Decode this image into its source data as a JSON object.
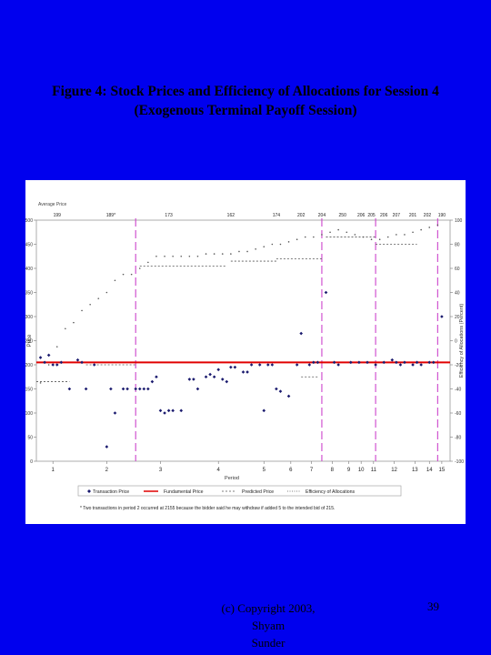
{
  "slide": {
    "title_line1": "Figure 4: Stock Prices and Efficiency of Allocations for Session 4",
    "title_line2": "(Exogenous Terminal Payoff Session)",
    "copyright_line1": "(c) Copyright 2003, Shyam",
    "copyright_line2": "Sunder",
    "page_number": "39",
    "background_color": "#0000ee"
  },
  "chart_data": {
    "type": "scatter",
    "xlabel": "Period",
    "ylabel": "Price",
    "y2label": "Efficiency of Allocations (Percent)",
    "top_axis_title": "Average Price",
    "ylim": [
      0,
      500
    ],
    "y2lim": [
      -100,
      100
    ],
    "y_ticks": [
      "0",
      "50",
      "100",
      "150",
      "200",
      "250",
      "300",
      "350",
      "400",
      "450",
      "500"
    ],
    "y2_ticks": [
      "-100",
      "-80",
      "-60",
      "-40",
      "-20",
      "0",
      "20",
      "40",
      "60",
      "80",
      "100"
    ],
    "xlim": [
      0,
      100
    ],
    "periods": [
      {
        "label": "1",
        "x": 4
      },
      {
        "label": "2",
        "x": 17
      },
      {
        "label": "3",
        "x": 30
      },
      {
        "label": "4",
        "x": 44
      },
      {
        "label": "5",
        "x": 55
      },
      {
        "label": "6",
        "x": 61.5
      },
      {
        "label": "7",
        "x": 66.5
      },
      {
        "label": "8",
        "x": 71.5
      },
      {
        "label": "9",
        "x": 75.5
      },
      {
        "label": "10",
        "x": 78.5
      },
      {
        "label": "11",
        "x": 81.5
      },
      {
        "label": "12",
        "x": 86.5
      },
      {
        "label": "13",
        "x": 91.5
      },
      {
        "label": "14",
        "x": 95
      },
      {
        "label": "15",
        "x": 98
      }
    ],
    "average_prices": [
      {
        "label": "199",
        "x": 5
      },
      {
        "label": "189*",
        "x": 18
      },
      {
        "label": "173",
        "x": 32
      },
      {
        "label": "162",
        "x": 47
      },
      {
        "label": "174",
        "x": 58
      },
      {
        "label": "202",
        "x": 64
      },
      {
        "label": "204",
        "x": 69
      },
      {
        "label": "250",
        "x": 74
      },
      {
        "label": "206",
        "x": 78.5
      },
      {
        "label": "205",
        "x": 81
      },
      {
        "label": "206",
        "x": 84
      },
      {
        "label": "207",
        "x": 87
      },
      {
        "label": "201",
        "x": 91
      },
      {
        "label": "202",
        "x": 94.5
      },
      {
        "label": "190",
        "x": 98
      }
    ],
    "vertical_dividers_x": [
      24,
      69,
      82,
      97
    ],
    "fundamental_price": 205,
    "series": [
      {
        "name": "Transaction Price",
        "points": [
          [
            1,
            215
          ],
          [
            2,
            205
          ],
          [
            3,
            220
          ],
          [
            4,
            200
          ],
          [
            5,
            200
          ],
          [
            6,
            205
          ],
          [
            8,
            150
          ],
          [
            10,
            210
          ],
          [
            11,
            205
          ],
          [
            12,
            150
          ],
          [
            14,
            200
          ],
          [
            17,
            30
          ],
          [
            18,
            150
          ],
          [
            19,
            100
          ],
          [
            21,
            150
          ],
          [
            22,
            150
          ],
          [
            24,
            150
          ],
          [
            25,
            150
          ],
          [
            26,
            150
          ],
          [
            27,
            150
          ],
          [
            28,
            165
          ],
          [
            29,
            175
          ],
          [
            30,
            105
          ],
          [
            31,
            100
          ],
          [
            32,
            105
          ],
          [
            33,
            105
          ],
          [
            35,
            105
          ],
          [
            37,
            170
          ],
          [
            38,
            170
          ],
          [
            39,
            150
          ],
          [
            41,
            175
          ],
          [
            42,
            180
          ],
          [
            43,
            175
          ],
          [
            44,
            190
          ],
          [
            45,
            170
          ],
          [
            46,
            165
          ],
          [
            47,
            195
          ],
          [
            48,
            195
          ],
          [
            50,
            185
          ],
          [
            51,
            185
          ],
          [
            52,
            200
          ],
          [
            54,
            200
          ],
          [
            55,
            105
          ],
          [
            56,
            200
          ],
          [
            57,
            200
          ],
          [
            58,
            150
          ],
          [
            59,
            145
          ],
          [
            61,
            135
          ],
          [
            63,
            200
          ],
          [
            64,
            265
          ],
          [
            66,
            200
          ],
          [
            67,
            205
          ],
          [
            68,
            205
          ],
          [
            70,
            350
          ],
          [
            72,
            205
          ],
          [
            73,
            200
          ],
          [
            76,
            205
          ],
          [
            78,
            205
          ],
          [
            80,
            205
          ],
          [
            82,
            200
          ],
          [
            84,
            205
          ],
          [
            86,
            210
          ],
          [
            87,
            205
          ],
          [
            88,
            200
          ],
          [
            89,
            205
          ],
          [
            91,
            200
          ],
          [
            92,
            205
          ],
          [
            93,
            200
          ],
          [
            95,
            205
          ],
          [
            96,
            205
          ],
          [
            98,
            300
          ]
        ]
      },
      {
        "name": "Fundamental Price",
        "value": 205
      },
      {
        "name": "Predicted Price",
        "segments": [
          {
            "x0": 0,
            "x1": 8,
            "y": 165
          },
          {
            "x0": 12,
            "x1": 24,
            "y": 200
          },
          {
            "x0": 25,
            "x1": 46,
            "y": 405
          },
          {
            "x0": 47,
            "x1": 58,
            "y": 415
          },
          {
            "x0": 58,
            "x1": 69,
            "y": 420
          },
          {
            "x0": 70,
            "x1": 82,
            "y": 465
          },
          {
            "x0": 82,
            "x1": 92,
            "y": 450
          },
          {
            "x0": 64,
            "x1": 68,
            "y": 175
          }
        ]
      },
      {
        "name": "Efficiency of Allocations",
        "points": [
          [
            1,
            -35
          ],
          [
            3,
            -20
          ],
          [
            5,
            -5
          ],
          [
            7,
            10
          ],
          [
            9,
            15
          ],
          [
            11,
            25
          ],
          [
            13,
            30
          ],
          [
            15,
            35
          ],
          [
            17,
            40
          ],
          [
            19,
            50
          ],
          [
            21,
            55
          ],
          [
            23,
            55
          ],
          [
            25,
            60
          ],
          [
            27,
            65
          ],
          [
            29,
            70
          ],
          [
            31,
            70
          ],
          [
            33,
            70
          ],
          [
            35,
            70
          ],
          [
            37,
            70
          ],
          [
            39,
            70
          ],
          [
            41,
            72
          ],
          [
            43,
            72
          ],
          [
            45,
            72
          ],
          [
            47,
            72
          ],
          [
            49,
            74
          ],
          [
            51,
            74
          ],
          [
            53,
            76
          ],
          [
            55,
            78
          ],
          [
            57,
            80
          ],
          [
            59,
            80
          ],
          [
            61,
            82
          ],
          [
            63,
            84
          ],
          [
            65,
            86
          ],
          [
            67,
            86
          ],
          [
            69,
            88
          ],
          [
            71,
            90
          ],
          [
            73,
            92
          ],
          [
            75,
            90
          ],
          [
            77,
            88
          ],
          [
            79,
            86
          ],
          [
            81,
            84
          ],
          [
            83,
            84
          ],
          [
            85,
            86
          ],
          [
            87,
            88
          ],
          [
            89,
            88
          ],
          [
            91,
            90
          ],
          [
            93,
            92
          ],
          [
            95,
            94
          ],
          [
            97,
            96
          ]
        ]
      }
    ],
    "legend": {
      "entries": [
        "Transaction Price",
        "Fundamental Price",
        "Predicted Price",
        "Efficiency of Allocations"
      ],
      "placement": "bottom"
    },
    "footnote": "* Two transactions in period 2 occurred at 2155 because the bidder said he may withdraw if added 5 to the intended bid of 215.",
    "colors": {
      "transaction": "#1a1a6e",
      "fundamental": "#e00000",
      "predicted": "#555555",
      "efficiency": "#555555",
      "dividers": "#cc44cc"
    }
  }
}
